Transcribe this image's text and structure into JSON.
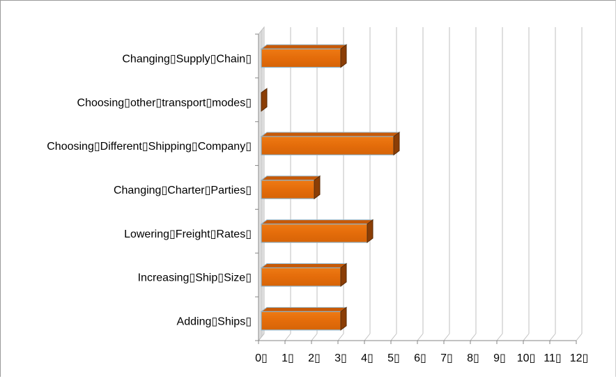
{
  "chart_data": {
    "type": "bar",
    "orientation": "horizontal",
    "three_d": true,
    "categories": [
      "Changing▯Supply▯Chain▯",
      "Choosing▯other▯transport▯modes▯",
      "Choosing▯Different▯Shipping▯Company▯",
      "Changing▯Charter▯Parties▯",
      "Lowering▯Freight▯Rates▯",
      "Increasing▯Ship▯Size▯",
      "Adding▯Ships▯"
    ],
    "values": [
      3,
      0,
      5,
      2,
      4,
      3,
      3
    ],
    "xlim": [
      0,
      12
    ],
    "xticks": [
      "0▯",
      "1▯",
      "2▯",
      "3▯",
      "4▯",
      "5▯",
      "6▯",
      "7▯",
      "8▯",
      "9▯",
      "10▯",
      "11▯",
      "12▯"
    ],
    "grid": true,
    "legend": "none",
    "title": "",
    "xlabel": "",
    "ylabel": "",
    "colors": {
      "bar_front": "#e46c0a",
      "bar_side": "#8b3e06",
      "bar_top": "#c75a08",
      "bar_edge": "#8fb3c8",
      "wall": "#d9d9d9",
      "grid": "#bfbfbf",
      "axis": "#868686"
    }
  }
}
